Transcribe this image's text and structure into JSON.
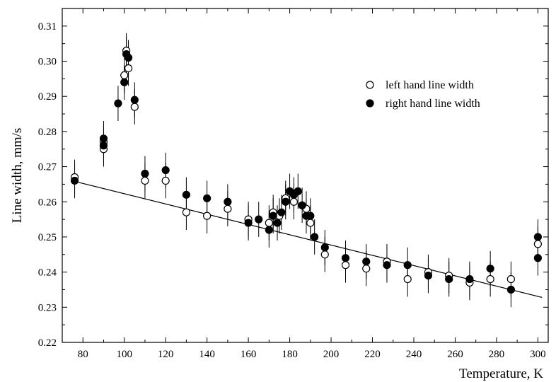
{
  "chart_data": {
    "type": "scatter",
    "title": "",
    "xlabel": "Temperature, K",
    "ylabel": "Line width, mm/s",
    "xlim": [
      70,
      305
    ],
    "ylim": [
      0.22,
      0.315
    ],
    "x_ticks": [
      "80",
      "100",
      "120",
      "140",
      "160",
      "180",
      "200",
      "220",
      "240",
      "260",
      "280",
      "300"
    ],
    "y_ticks": [
      "0.22",
      "0.23",
      "0.24",
      "0.25",
      "0.26",
      "0.27",
      "0.28",
      "0.29",
      "0.30",
      "0.31"
    ],
    "legend_placement": "top-right",
    "grid": false,
    "error_bar": 0.005,
    "series": [
      {
        "name": "left hand line width",
        "marker": "open-circle",
        "color": "#000000",
        "points": [
          [
            76,
            0.267
          ],
          [
            90,
            0.275
          ],
          [
            90,
            0.277
          ],
          [
            100,
            0.296
          ],
          [
            101,
            0.303
          ],
          [
            102,
            0.298
          ],
          [
            105,
            0.287
          ],
          [
            110,
            0.266
          ],
          [
            120,
            0.266
          ],
          [
            130,
            0.257
          ],
          [
            140,
            0.256
          ],
          [
            150,
            0.258
          ],
          [
            160,
            0.255
          ],
          [
            170,
            0.254
          ],
          [
            172,
            0.257
          ],
          [
            175,
            0.256
          ],
          [
            178,
            0.261
          ],
          [
            182,
            0.26
          ],
          [
            188,
            0.258
          ],
          [
            190,
            0.254
          ],
          [
            197,
            0.245
          ],
          [
            207,
            0.242
          ],
          [
            217,
            0.241
          ],
          [
            227,
            0.243
          ],
          [
            237,
            0.238
          ],
          [
            247,
            0.24
          ],
          [
            257,
            0.239
          ],
          [
            267,
            0.237
          ],
          [
            277,
            0.238
          ],
          [
            287,
            0.238
          ],
          [
            300,
            0.248
          ]
        ]
      },
      {
        "name": "right hand line width",
        "marker": "filled-circle",
        "color": "#000000",
        "points": [
          [
            76,
            0.266
          ],
          [
            90,
            0.276
          ],
          [
            90,
            0.278
          ],
          [
            97,
            0.288
          ],
          [
            100,
            0.294
          ],
          [
            101,
            0.302
          ],
          [
            102,
            0.301
          ],
          [
            105,
            0.289
          ],
          [
            110,
            0.268
          ],
          [
            120,
            0.269
          ],
          [
            130,
            0.262
          ],
          [
            140,
            0.261
          ],
          [
            150,
            0.26
          ],
          [
            160,
            0.254
          ],
          [
            165,
            0.255
          ],
          [
            170,
            0.252
          ],
          [
            172,
            0.256
          ],
          [
            174,
            0.254
          ],
          [
            176,
            0.257
          ],
          [
            178,
            0.26
          ],
          [
            180,
            0.263
          ],
          [
            182,
            0.262
          ],
          [
            184,
            0.263
          ],
          [
            186,
            0.259
          ],
          [
            188,
            0.256
          ],
          [
            190,
            0.256
          ],
          [
            192,
            0.25
          ],
          [
            197,
            0.247
          ],
          [
            207,
            0.244
          ],
          [
            217,
            0.243
          ],
          [
            227,
            0.242
          ],
          [
            237,
            0.242
          ],
          [
            247,
            0.239
          ],
          [
            257,
            0.238
          ],
          [
            267,
            0.238
          ],
          [
            277,
            0.241
          ],
          [
            287,
            0.235
          ],
          [
            300,
            0.25
          ],
          [
            300,
            0.244
          ]
        ]
      }
    ],
    "fit_line": {
      "type": "linear",
      "start": [
        76,
        0.2658
      ],
      "end": [
        302,
        0.2328
      ]
    }
  }
}
